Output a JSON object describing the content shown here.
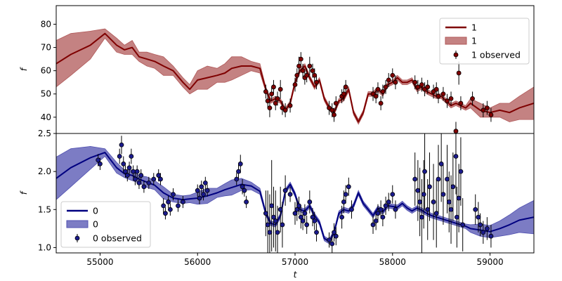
{
  "chart_data": [
    {
      "type": "line",
      "panel": "top",
      "title": "",
      "xlabel": "",
      "ylabel": "f",
      "xlim": [
        54550,
        59450
      ],
      "ylim": [
        33,
        88
      ],
      "yticks": [
        40,
        50,
        60,
        70,
        80
      ],
      "legend": {
        "placement": "top-right",
        "entries": [
          "1",
          "1",
          "1 observed"
        ]
      },
      "colors": {
        "line": "#7f0000",
        "band": "#b05858",
        "marker": "#7f0000",
        "errorbar": "#000000"
      },
      "model": {
        "x": [
          54550,
          54700,
          54900,
          55050,
          55170,
          55250,
          55330,
          55400,
          55480,
          55560,
          55650,
          55750,
          55850,
          55920,
          56000,
          56100,
          56200,
          56280,
          56350,
          56450,
          56550,
          56640,
          56700,
          56750,
          56800,
          56850,
          56900,
          56950,
          57000,
          57050,
          57100,
          57150,
          57200,
          57250,
          57300,
          57350,
          57400,
          57450,
          57500,
          57550,
          57600,
          57650,
          57700,
          57750,
          57800,
          57850,
          57900,
          57950,
          58000,
          58050,
          58100,
          58150,
          58200,
          58250,
          58300,
          58350,
          58400,
          58450,
          58500,
          58550,
          58600,
          58650,
          58700,
          58750,
          58800,
          58900,
          59000,
          59100,
          59200,
          59300,
          59450
        ],
        "y": [
          63,
          67,
          71,
          76,
          71,
          69,
          70,
          66,
          65,
          64,
          62,
          60,
          55,
          52,
          56,
          57,
          58,
          59,
          61,
          62,
          62,
          61,
          52,
          47,
          48,
          47,
          43,
          46,
          55,
          60,
          62,
          57,
          53,
          56,
          48,
          44,
          42,
          47,
          48,
          52,
          42,
          38,
          42,
          50,
          50,
          52,
          50,
          54,
          55,
          57,
          55,
          55,
          56,
          52,
          53,
          51,
          50,
          49,
          49,
          47,
          45,
          46,
          45,
          44,
          46,
          43,
          42,
          43,
          42,
          44,
          46
        ],
        "band_halfwidth": [
          10,
          9,
          6,
          2,
          3,
          2,
          3,
          2,
          3,
          3,
          4,
          2,
          2,
          2,
          4,
          5,
          3,
          4,
          5,
          4,
          2,
          2,
          1,
          1,
          1,
          1,
          1,
          1,
          1,
          1,
          1,
          1,
          1,
          1,
          1,
          1,
          1,
          1,
          1,
          1,
          1,
          1,
          1,
          1,
          1,
          1,
          1,
          1,
          1,
          1,
          1,
          1,
          1,
          1,
          1,
          1,
          1,
          1,
          1,
          1,
          1,
          1,
          1,
          1,
          2,
          3,
          2,
          3,
          4,
          5,
          7
        ]
      },
      "observed": {
        "x": [
          56700,
          56720,
          56740,
          56760,
          56780,
          56800,
          56820,
          56850,
          56870,
          56900,
          56950,
          57000,
          57020,
          57040,
          57060,
          57080,
          57100,
          57120,
          57150,
          57180,
          57200,
          57220,
          57350,
          57380,
          57400,
          57420,
          57480,
          57500,
          57520,
          57800,
          57830,
          57850,
          57880,
          57900,
          57930,
          57960,
          58000,
          58030,
          58230,
          58260,
          58300,
          58330,
          58360,
          58420,
          58450,
          58470,
          58520,
          58560,
          58600,
          58650,
          58680,
          58700,
          58820,
          58930,
          58970,
          59010
        ],
        "y": [
          51,
          47,
          44,
          50,
          53,
          46,
          48,
          52,
          44,
          43,
          45,
          54,
          58,
          62,
          65,
          60,
          57,
          58,
          62,
          60,
          58,
          55,
          44,
          43,
          41,
          46,
          49,
          50,
          53,
          50,
          49,
          52,
          46,
          51,
          53,
          56,
          58,
          55,
          55,
          53,
          54,
          52,
          53,
          51,
          52,
          49,
          50,
          47,
          48,
          34,
          59,
          46,
          48,
          43,
          44,
          41
        ],
        "yerr": [
          3,
          3,
          4,
          3,
          3,
          3,
          3,
          4,
          3,
          3,
          3,
          3,
          3,
          4,
          3,
          3,
          3,
          3,
          4,
          3,
          3,
          3,
          3,
          3,
          3,
          3,
          3,
          3,
          3,
          3,
          3,
          3,
          3,
          3,
          3,
          3,
          3,
          3,
          3,
          3,
          3,
          3,
          3,
          3,
          3,
          3,
          3,
          3,
          3,
          4,
          5,
          3,
          3,
          3,
          3,
          3
        ]
      }
    },
    {
      "type": "line",
      "panel": "bottom",
      "title": "",
      "xlabel": "t",
      "ylabel": "f",
      "xlim": [
        54550,
        59450
      ],
      "ylim": [
        0.93,
        2.5
      ],
      "yticks": [
        1.0,
        1.5,
        2.0,
        2.5
      ],
      "xticks": [
        55000,
        56000,
        57000,
        58000,
        59000
      ],
      "legend": {
        "placement": "bottom-left",
        "entries": [
          "0",
          "0",
          "0 observed"
        ]
      },
      "colors": {
        "line": "#000080",
        "band": "#5050b0",
        "marker": "#1a1a8c",
        "errorbar": "#000000"
      },
      "model": {
        "x": [
          54550,
          54700,
          54900,
          55050,
          55170,
          55250,
          55330,
          55400,
          55480,
          55560,
          55650,
          55750,
          55850,
          55920,
          56000,
          56100,
          56200,
          56280,
          56350,
          56450,
          56550,
          56640,
          56700,
          56750,
          56800,
          56850,
          56900,
          56950,
          57000,
          57050,
          57100,
          57150,
          57200,
          57250,
          57300,
          57350,
          57400,
          57450,
          57500,
          57550,
          57600,
          57650,
          57700,
          57750,
          57800,
          57850,
          57900,
          57950,
          58000,
          58050,
          58100,
          58150,
          58200,
          58250,
          58300,
          58350,
          58400,
          58450,
          58500,
          58550,
          58600,
          58650,
          58700,
          58750,
          58800,
          58900,
          59000,
          59100,
          59200,
          59300,
          59450
        ],
        "y": [
          1.91,
          2.05,
          2.18,
          2.25,
          2.05,
          1.97,
          1.95,
          1.9,
          1.86,
          1.82,
          1.72,
          1.65,
          1.63,
          1.64,
          1.65,
          1.68,
          1.72,
          1.76,
          1.79,
          1.83,
          1.81,
          1.74,
          1.45,
          1.32,
          1.3,
          1.42,
          1.74,
          1.83,
          1.7,
          1.5,
          1.48,
          1.55,
          1.42,
          1.33,
          1.12,
          1.08,
          1.2,
          1.45,
          1.5,
          1.48,
          1.55,
          1.72,
          1.58,
          1.5,
          1.42,
          1.52,
          1.47,
          1.55,
          1.54,
          1.53,
          1.58,
          1.52,
          1.48,
          1.52,
          1.49,
          1.45,
          1.42,
          1.4,
          1.38,
          1.36,
          1.34,
          1.32,
          1.3,
          1.28,
          1.25,
          1.23,
          1.21,
          1.25,
          1.3,
          1.36,
          1.4
        ],
        "band_halfwidth": [
          0.28,
          0.25,
          0.15,
          0.05,
          0.07,
          0.05,
          0.07,
          0.05,
          0.07,
          0.06,
          0.08,
          0.05,
          0.05,
          0.05,
          0.08,
          0.1,
          0.06,
          0.08,
          0.1,
          0.08,
          0.05,
          0.04,
          0.03,
          0.03,
          0.03,
          0.03,
          0.03,
          0.03,
          0.03,
          0.03,
          0.03,
          0.03,
          0.03,
          0.03,
          0.03,
          0.03,
          0.03,
          0.03,
          0.03,
          0.03,
          0.03,
          0.03,
          0.03,
          0.03,
          0.03,
          0.03,
          0.03,
          0.03,
          0.03,
          0.03,
          0.03,
          0.03,
          0.03,
          0.03,
          0.03,
          0.03,
          0.03,
          0.03,
          0.03,
          0.03,
          0.03,
          0.03,
          0.03,
          0.03,
          0.05,
          0.08,
          0.08,
          0.1,
          0.13,
          0.16,
          0.22
        ]
      },
      "observed": {
        "x": [
          54980,
          55000,
          55200,
          55220,
          55240,
          55260,
          55280,
          55300,
          55320,
          55340,
          55360,
          55380,
          55400,
          55420,
          55450,
          55500,
          55550,
          55600,
          55620,
          55650,
          55670,
          55700,
          55720,
          55750,
          55800,
          55850,
          56000,
          56020,
          56040,
          56060,
          56080,
          56100,
          56400,
          56420,
          56440,
          56460,
          56480,
          56500,
          56700,
          56720,
          56740,
          56760,
          56780,
          56800,
          56820,
          56850,
          56870,
          56900,
          56950,
          57000,
          57020,
          57040,
          57060,
          57080,
          57100,
          57120,
          57150,
          57180,
          57200,
          57220,
          57350,
          57380,
          57400,
          57420,
          57480,
          57500,
          57520,
          57550,
          57580,
          57800,
          57830,
          57850,
          57880,
          57900,
          57930,
          57960,
          58000,
          58030,
          58230,
          58260,
          58280,
          58300,
          58320,
          58330,
          58360,
          58380,
          58420,
          58450,
          58470,
          58500,
          58520,
          58560,
          58580,
          58600,
          58620,
          58650,
          58660,
          58680,
          58700,
          58720,
          58850,
          58880,
          58900,
          58930,
          58970,
          59010
        ],
        "y": [
          2.15,
          2.1,
          2.2,
          2.35,
          2.1,
          2.0,
          1.95,
          2.05,
          2.2,
          2.0,
          1.9,
          2.0,
          1.85,
          1.95,
          1.8,
          1.85,
          1.9,
          1.95,
          1.9,
          1.55,
          1.45,
          1.6,
          1.5,
          1.7,
          1.55,
          1.6,
          1.75,
          1.65,
          1.8,
          1.7,
          1.85,
          1.75,
          1.9,
          2.0,
          2.1,
          1.8,
          1.75,
          1.6,
          1.45,
          1.3,
          1.2,
          1.55,
          1.4,
          1.35,
          1.2,
          1.5,
          1.3,
          1.75,
          1.7,
          1.45,
          1.5,
          1.55,
          1.4,
          1.35,
          1.45,
          1.3,
          1.6,
          1.4,
          1.35,
          1.2,
          1.1,
          1.05,
          1.2,
          1.15,
          1.4,
          1.6,
          1.7,
          1.8,
          1.5,
          1.3,
          1.35,
          1.45,
          1.5,
          1.4,
          1.55,
          1.6,
          1.7,
          1.5,
          1.9,
          1.75,
          1.6,
          1.4,
          1.7,
          2.0,
          1.5,
          1.8,
          1.6,
          1.45,
          1.9,
          2.1,
          1.7,
          1.9,
          1.6,
          1.5,
          1.8,
          2.2,
          1.4,
          1.65,
          2.0,
          1.3,
          1.5,
          1.4,
          1.3,
          1.2,
          1.25,
          1.15
        ],
        "yerr": [
          0.08,
          0.08,
          0.1,
          0.12,
          0.1,
          0.08,
          0.08,
          0.08,
          0.1,
          0.08,
          0.08,
          0.08,
          0.08,
          0.08,
          0.08,
          0.08,
          0.08,
          0.08,
          0.08,
          0.1,
          0.08,
          0.08,
          0.08,
          0.08,
          0.08,
          0.08,
          0.08,
          0.08,
          0.08,
          0.08,
          0.08,
          0.08,
          0.08,
          0.1,
          0.12,
          0.1,
          0.08,
          0.08,
          0.3,
          0.45,
          0.5,
          0.6,
          0.4,
          0.4,
          0.35,
          0.3,
          0.3,
          0.2,
          0.1,
          0.15,
          0.15,
          0.12,
          0.15,
          0.12,
          0.12,
          0.12,
          0.15,
          0.12,
          0.12,
          0.12,
          0.1,
          0.12,
          0.12,
          0.12,
          0.15,
          0.15,
          0.12,
          0.12,
          0.12,
          0.12,
          0.12,
          0.12,
          0.12,
          0.12,
          0.12,
          0.12,
          0.12,
          0.12,
          0.35,
          0.4,
          0.45,
          0.5,
          0.45,
          0.5,
          0.4,
          0.45,
          0.5,
          0.45,
          0.45,
          0.5,
          0.4,
          0.45,
          0.4,
          0.45,
          0.45,
          0.5,
          0.4,
          0.45,
          0.45,
          0.35,
          0.2,
          0.2,
          0.15,
          0.15,
          0.15,
          0.15
        ]
      }
    }
  ]
}
